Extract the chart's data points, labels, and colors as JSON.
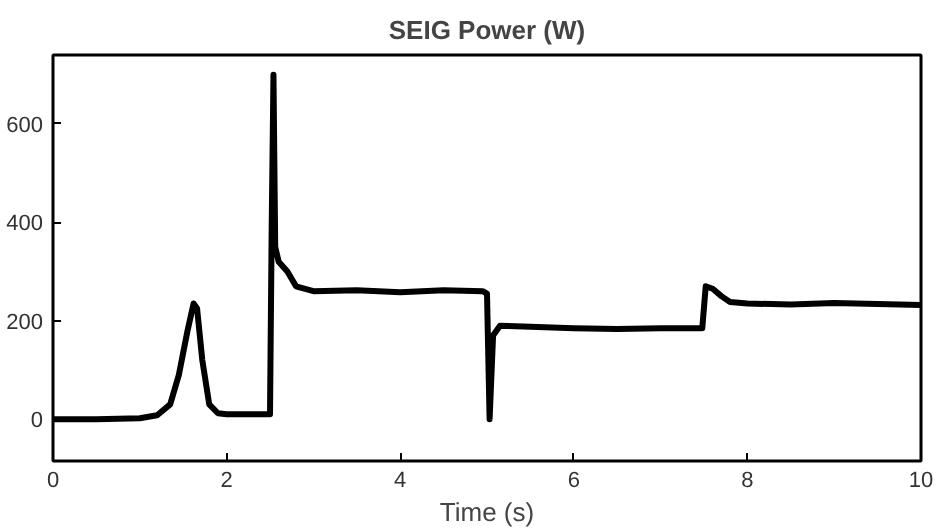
{
  "chart_data": {
    "type": "line",
    "title": "SEIG Power (W)",
    "xlabel": "Time (s)",
    "xlim": [
      0,
      10
    ],
    "ylim": [
      -85,
      740
    ],
    "xticks": [
      0,
      2,
      4,
      6,
      8,
      10
    ],
    "yticks": [
      0,
      200,
      400,
      600
    ],
    "grid": false,
    "marker": "none",
    "line_style": "solid",
    "series": [
      {
        "color": "#000000",
        "x": [
          0,
          0.5,
          1.0,
          1.2,
          1.35,
          1.45,
          1.55,
          1.62,
          1.66,
          1.72,
          1.8,
          1.9,
          2.0,
          2.3,
          2.5,
          2.52,
          2.54,
          2.56,
          2.6,
          2.7,
          2.8,
          3.0,
          3.5,
          4.0,
          4.5,
          4.95,
          5.0,
          5.03,
          5.07,
          5.15,
          5.5,
          6.0,
          6.5,
          7.0,
          7.48,
          7.52,
          7.6,
          7.7,
          7.8,
          8.0,
          8.5,
          9.0,
          9.5,
          10.0
        ],
        "values": [
          0,
          0,
          2,
          8,
          30,
          90,
          180,
          235,
          225,
          120,
          30,
          12,
          10,
          10,
          10,
          400,
          700,
          350,
          320,
          300,
          270,
          260,
          262,
          258,
          262,
          260,
          255,
          0,
          170,
          190,
          188,
          185,
          183,
          185,
          185,
          270,
          265,
          250,
          238,
          235,
          233,
          236,
          234,
          232
        ]
      }
    ]
  }
}
